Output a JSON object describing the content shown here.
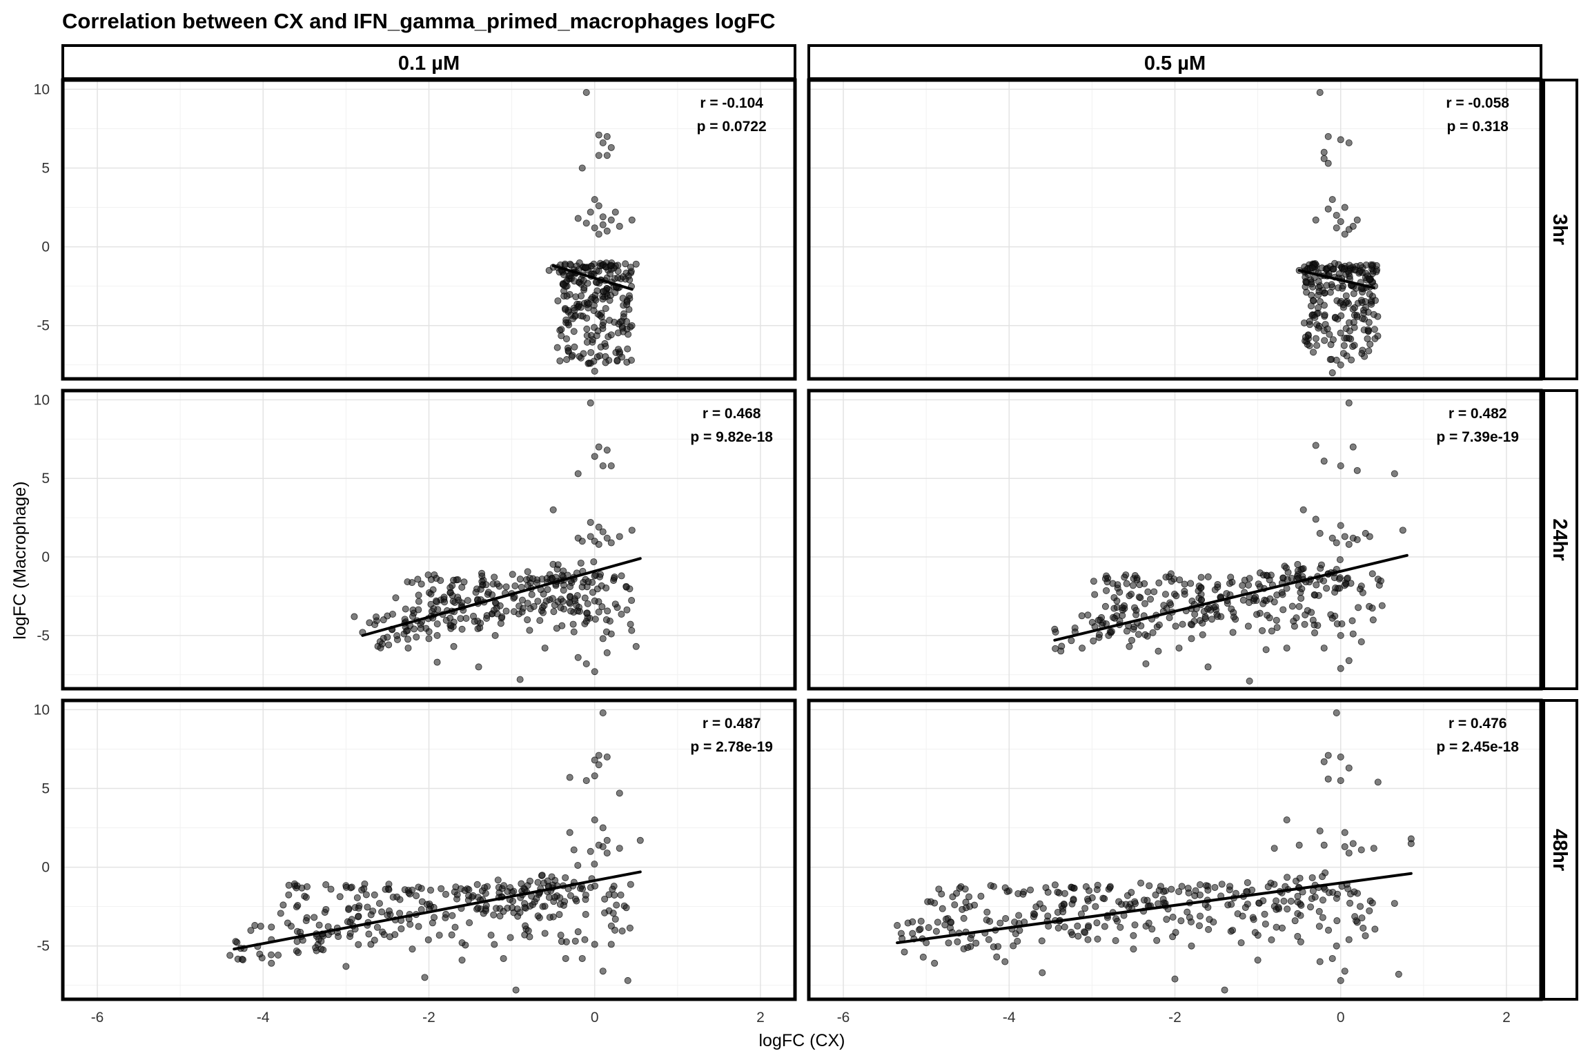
{
  "chart_data": {
    "type": "scatter",
    "title": "Correlation between CX and IFN_gamma_primed_macrophages logFC",
    "xlabel": "logFC (CX)",
    "ylabel": "logFC (Macrophage)",
    "xlim": [
      -6.4,
      2.4
    ],
    "ylim": [
      -8.3,
      10.5
    ],
    "x_ticks": [
      -6,
      -4,
      -2,
      0,
      2
    ],
    "y_ticks": [
      10,
      5,
      0,
      -5
    ],
    "grid": true,
    "columns": [
      "0.1 µM",
      "0.5 µM"
    ],
    "rows": [
      "3hr",
      "24hr",
      "48hr"
    ],
    "panels": [
      {
        "row": "3hr",
        "col": "0.1 µM",
        "r_label": "r = -0.104",
        "p_label": "p = 0.0722",
        "trend": {
          "x": [
            -0.5,
            0.45
          ],
          "y": [
            -1.2,
            -2.7
          ]
        },
        "cluster": {
          "x_min": -0.45,
          "x_max": 0.45,
          "y_min": -7.2,
          "y_max": -1.0,
          "n": 240
        },
        "points": [
          [
            -0.1,
            9.8
          ],
          [
            0.05,
            7.1
          ],
          [
            0.15,
            7.0
          ],
          [
            0.1,
            6.6
          ],
          [
            0.2,
            6.3
          ],
          [
            0.05,
            5.8
          ],
          [
            -0.15,
            5.0
          ],
          [
            0.15,
            5.8
          ],
          [
            0.0,
            3.0
          ],
          [
            0.05,
            2.6
          ],
          [
            -0.2,
            1.8
          ],
          [
            0.1,
            1.9
          ],
          [
            0.2,
            1.7
          ],
          [
            0.45,
            1.7
          ],
          [
            -0.1,
            1.5
          ],
          [
            0.0,
            1.2
          ],
          [
            0.15,
            1.0
          ],
          [
            0.3,
            1.3
          ],
          [
            0.05,
            0.8
          ],
          [
            -0.05,
            2.2
          ],
          [
            0.25,
            2.2
          ],
          [
            0.1,
            1.4
          ],
          [
            -0.5,
            -1.3
          ],
          [
            -0.55,
            -1.5
          ],
          [
            0.5,
            -1.1
          ],
          [
            -0.45,
            -6.4
          ],
          [
            0.3,
            -6.8
          ],
          [
            0.0,
            -7.9
          ],
          [
            -0.05,
            -7.4
          ]
        ]
      },
      {
        "row": "3hr",
        "col": "0.5 µM",
        "r_label": "r = -0.058",
        "p_label": "p = 0.318",
        "trend": {
          "x": [
            -0.5,
            0.4
          ],
          "y": [
            -1.5,
            -2.6
          ]
        },
        "cluster": {
          "x_min": -0.45,
          "x_max": 0.45,
          "y_min": -7.0,
          "y_max": -1.0,
          "n": 230
        },
        "points": [
          [
            -0.25,
            9.8
          ],
          [
            -0.15,
            7.0
          ],
          [
            0.0,
            6.8
          ],
          [
            0.1,
            6.6
          ],
          [
            -0.2,
            6.0
          ],
          [
            -0.2,
            5.6
          ],
          [
            -0.15,
            5.3
          ],
          [
            -0.1,
            3.0
          ],
          [
            -0.15,
            2.4
          ],
          [
            0.05,
            2.5
          ],
          [
            -0.3,
            1.7
          ],
          [
            0.2,
            1.7
          ],
          [
            -0.05,
            1.2
          ],
          [
            0.1,
            1.1
          ],
          [
            0.05,
            0.8
          ],
          [
            0.0,
            1.6
          ],
          [
            -0.05,
            2.0
          ],
          [
            0.15,
            1.3
          ],
          [
            -0.5,
            -1.5
          ],
          [
            -0.4,
            -6.2
          ],
          [
            0.4,
            -4.3
          ],
          [
            0.1,
            -5.8
          ],
          [
            0.0,
            -7.5
          ],
          [
            -0.1,
            -8.0
          ],
          [
            -0.05,
            -7.2
          ]
        ]
      },
      {
        "row": "24hr",
        "col": "0.1 µM",
        "r_label": "r = 0.468",
        "p_label": "p = 9.82e-18",
        "trend": {
          "x": [
            -2.8,
            0.55
          ],
          "y": [
            -5.0,
            -0.1
          ]
        },
        "cluster": {
          "x_min": -2.3,
          "x_max": 0.45,
          "y_min": -4.6,
          "y_max": -1.0,
          "n": 170
        },
        "points": [
          [
            -0.05,
            9.8
          ],
          [
            0.05,
            7.0
          ],
          [
            0.15,
            6.8
          ],
          [
            0.0,
            6.4
          ],
          [
            0.1,
            5.8
          ],
          [
            -0.2,
            5.3
          ],
          [
            0.2,
            5.8
          ],
          [
            -0.5,
            3.0
          ],
          [
            -0.05,
            2.2
          ],
          [
            0.05,
            1.9
          ],
          [
            -0.2,
            1.2
          ],
          [
            0.0,
            1.0
          ],
          [
            0.15,
            1.2
          ],
          [
            0.3,
            1.3
          ],
          [
            0.45,
            1.7
          ],
          [
            -0.05,
            1.3
          ],
          [
            0.1,
            1.6
          ],
          [
            0.2,
            0.9
          ],
          [
            0.05,
            0.8
          ],
          [
            -0.15,
            1.0
          ],
          [
            -2.8,
            -4.8
          ],
          [
            -2.9,
            -3.8
          ],
          [
            -2.4,
            -2.6
          ],
          [
            -2.25,
            -5.8
          ],
          [
            -1.9,
            -6.7
          ],
          [
            -1.7,
            -5.7
          ],
          [
            -1.9,
            -5.0
          ],
          [
            -1.4,
            -7.0
          ],
          [
            -0.9,
            -7.8
          ],
          [
            -0.6,
            -5.8
          ],
          [
            -0.2,
            -6.4
          ],
          [
            -0.1,
            -6.8
          ],
          [
            0.0,
            -7.3
          ],
          [
            0.1,
            -5.2
          ],
          [
            0.15,
            -6.1
          ],
          [
            0.2,
            -4.9
          ],
          [
            0.5,
            -5.7
          ],
          [
            -0.1,
            -4.1
          ],
          [
            0.05,
            -3.5
          ],
          [
            -2.3,
            -4.9
          ],
          [
            -2.0,
            -5.2
          ],
          [
            -1.6,
            -4.6
          ],
          [
            -1.2,
            -5.0
          ],
          [
            0.0,
            -2.8
          ],
          [
            0.25,
            -3.0
          ]
        ]
      },
      {
        "row": "24hr",
        "col": "0.5 µM",
        "r_label": "r = 0.482",
        "p_label": "p = 7.39e-19",
        "trend": {
          "x": [
            -3.45,
            0.8
          ],
          "y": [
            -5.3,
            0.1
          ]
        },
        "cluster": {
          "x_min": -3.0,
          "x_max": 0.5,
          "y_min": -4.8,
          "y_max": -1.0,
          "n": 175
        },
        "points": [
          [
            0.1,
            9.8
          ],
          [
            -0.3,
            7.1
          ],
          [
            0.15,
            7.0
          ],
          [
            -0.2,
            6.1
          ],
          [
            0.0,
            5.8
          ],
          [
            0.2,
            5.5
          ],
          [
            0.65,
            5.3
          ],
          [
            -0.45,
            3.0
          ],
          [
            -0.3,
            2.4
          ],
          [
            0.0,
            2.0
          ],
          [
            -0.25,
            1.5
          ],
          [
            0.05,
            1.3
          ],
          [
            0.15,
            1.2
          ],
          [
            0.35,
            1.3
          ],
          [
            0.75,
            1.7
          ],
          [
            -0.1,
            1.2
          ],
          [
            0.2,
            1.1
          ],
          [
            0.3,
            1.5
          ],
          [
            -0.05,
            0.9
          ],
          [
            0.1,
            0.8
          ],
          [
            -3.45,
            -4.6
          ],
          [
            -3.05,
            -3.7
          ],
          [
            -2.7,
            -2.8
          ],
          [
            -2.55,
            -5.7
          ],
          [
            -2.35,
            -6.8
          ],
          [
            -2.2,
            -6.0
          ],
          [
            -1.95,
            -5.8
          ],
          [
            -1.6,
            -7.0
          ],
          [
            -1.1,
            -7.9
          ],
          [
            -0.65,
            -5.8
          ],
          [
            -0.2,
            -5.8
          ],
          [
            0.0,
            -7.1
          ],
          [
            0.1,
            -6.6
          ],
          [
            0.0,
            -5.0
          ],
          [
            0.15,
            -4.9
          ],
          [
            -0.1,
            -3.9
          ],
          [
            0.5,
            -3.1
          ],
          [
            -2.8,
            -5.0
          ],
          [
            -2.5,
            -4.6
          ],
          [
            -1.8,
            -5.2
          ],
          [
            -1.3,
            -4.8
          ],
          [
            -0.9,
            -5.9
          ],
          [
            0.25,
            -5.4
          ]
        ]
      },
      {
        "row": "48hr",
        "col": "0.1 µM",
        "r_label": "r = 0.487",
        "p_label": "p = 2.78e-19",
        "trend": {
          "x": [
            -4.35,
            0.55
          ],
          "y": [
            -5.2,
            -0.3
          ]
        },
        "cluster": {
          "x_min": -3.8,
          "x_max": 0.45,
          "y_min": -4.7,
          "y_max": -1.0,
          "n": 190
        },
        "points": [
          [
            0.1,
            9.8
          ],
          [
            0.05,
            7.1
          ],
          [
            0.15,
            7.0
          ],
          [
            0.0,
            6.8
          ],
          [
            0.05,
            6.5
          ],
          [
            -0.3,
            5.7
          ],
          [
            -0.1,
            5.5
          ],
          [
            0.0,
            5.8
          ],
          [
            0.3,
            4.7
          ],
          [
            0.0,
            3.0
          ],
          [
            0.1,
            2.5
          ],
          [
            -0.3,
            2.2
          ],
          [
            0.15,
            1.7
          ],
          [
            -0.25,
            1.1
          ],
          [
            0.05,
            1.4
          ],
          [
            0.15,
            0.9
          ],
          [
            0.3,
            1.2
          ],
          [
            0.55,
            1.7
          ],
          [
            -0.05,
            1.0
          ],
          [
            0.1,
            1.3
          ],
          [
            -4.4,
            -5.6
          ],
          [
            -4.1,
            -3.7
          ],
          [
            -3.9,
            -4.6
          ],
          [
            -3.9,
            -6.1
          ],
          [
            -3.3,
            -4.7
          ],
          [
            -3.0,
            -6.3
          ],
          [
            -2.95,
            -3.5
          ],
          [
            -3.9,
            -3.8
          ],
          [
            -2.05,
            -7.0
          ],
          [
            -1.6,
            -5.9
          ],
          [
            -1.1,
            -5.8
          ],
          [
            -0.95,
            -7.8
          ],
          [
            -0.35,
            -5.8
          ],
          [
            -0.15,
            -5.8
          ],
          [
            0.1,
            -6.6
          ],
          [
            0.0,
            -4.9
          ],
          [
            0.4,
            -7.2
          ],
          [
            -0.2,
            -4.1
          ],
          [
            0.25,
            -3.3
          ],
          [
            -3.3,
            -5.2
          ],
          [
            -2.7,
            -4.9
          ],
          [
            -2.2,
            -5.2
          ],
          [
            -1.6,
            -4.8
          ],
          [
            -0.6,
            -4.2
          ],
          [
            0.2,
            -4.9
          ]
        ]
      },
      {
        "row": "48hr",
        "col": "0.5 µM",
        "r_label": "r = 0.476",
        "p_label": "p = 2.45e-18",
        "trend": {
          "x": [
            -5.35,
            0.85
          ],
          "y": [
            -4.8,
            -0.4
          ]
        },
        "cluster": {
          "x_min": -5.0,
          "x_max": 0.5,
          "y_min": -4.6,
          "y_max": -1.0,
          "n": 200
        },
        "points": [
          [
            -0.05,
            9.8
          ],
          [
            -0.15,
            7.1
          ],
          [
            0.0,
            7.0
          ],
          [
            -0.2,
            6.7
          ],
          [
            0.1,
            6.3
          ],
          [
            -0.15,
            5.6
          ],
          [
            0.0,
            5.5
          ],
          [
            0.45,
            5.4
          ],
          [
            -0.65,
            3.0
          ],
          [
            -0.25,
            2.3
          ],
          [
            0.05,
            2.2
          ],
          [
            -0.2,
            1.4
          ],
          [
            0.05,
            1.3
          ],
          [
            0.15,
            1.5
          ],
          [
            0.4,
            1.2
          ],
          [
            0.85,
            1.8
          ],
          [
            -0.5,
            1.4
          ],
          [
            -0.8,
            1.2
          ],
          [
            0.25,
            1.1
          ],
          [
            0.85,
            1.5
          ],
          [
            0.1,
            0.9
          ],
          [
            -5.35,
            -3.7
          ],
          [
            -5.0,
            -4.8
          ],
          [
            -4.9,
            -6.1
          ],
          [
            -4.15,
            -5.7
          ],
          [
            -4.05,
            -6.0
          ],
          [
            -3.6,
            -6.7
          ],
          [
            -2.0,
            -7.1
          ],
          [
            -1.4,
            -7.8
          ],
          [
            -1.0,
            -5.9
          ],
          [
            -0.25,
            -6.0
          ],
          [
            -0.1,
            -5.8
          ],
          [
            0.0,
            -7.2
          ],
          [
            0.05,
            -6.6
          ],
          [
            -0.05,
            -5.0
          ],
          [
            0.7,
            -6.8
          ],
          [
            0.65,
            -2.3
          ],
          [
            -0.55,
            -3.4
          ],
          [
            -4.5,
            -5.1
          ],
          [
            -3.9,
            -4.7
          ],
          [
            -2.5,
            -5.2
          ],
          [
            -1.8,
            -5.0
          ],
          [
            -1.2,
            -4.8
          ],
          [
            0.1,
            -4.6
          ],
          [
            0.2,
            -3.5
          ]
        ]
      }
    ]
  }
}
